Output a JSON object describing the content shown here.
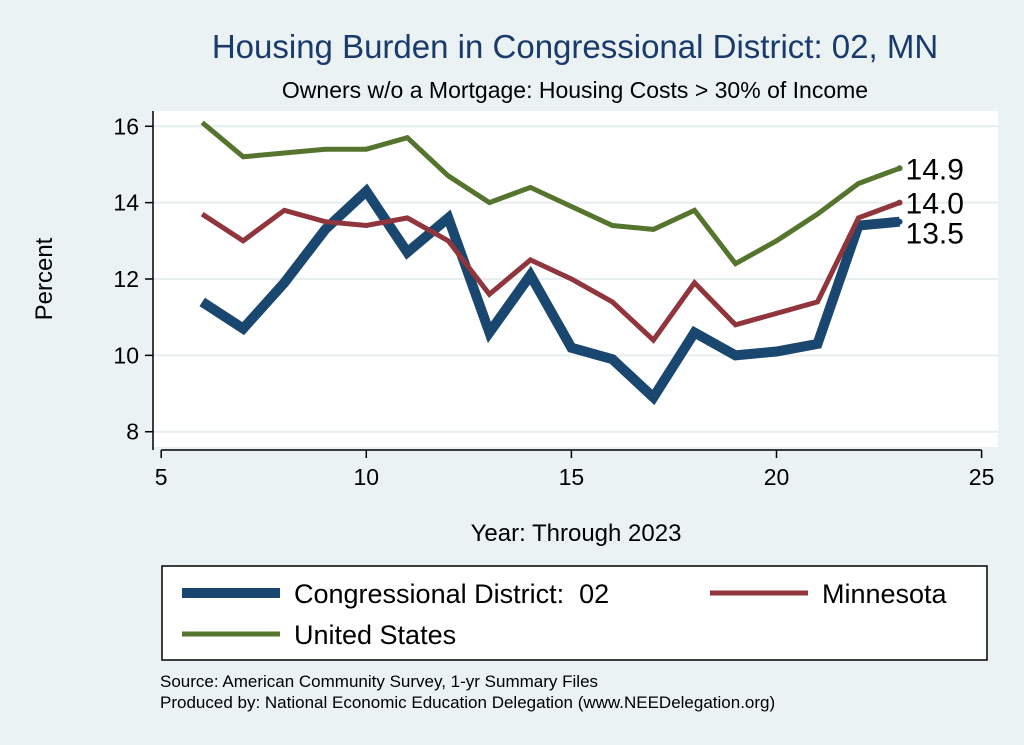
{
  "title": "Housing Burden in Congressional District:  02, MN",
  "subtitle": "Owners w/o a Mortgage: Housing Costs > 30% of Income",
  "source_lines": [
    "Source: American Community Survey, 1-yr Summary Files",
    "Produced by: National Economic Education Delegation (www.NEEDelegation.org)"
  ],
  "colors": {
    "background": "#eaf2f3",
    "plot_background": "#ffffff",
    "grid": "#e6eef0",
    "title": "#1a3a6b"
  },
  "chart_data": {
    "type": "line",
    "title": "Housing Burden in Congressional District:  02, MN",
    "subtitle": "Owners w/o a Mortgage: Housing Costs > 30% of Income",
    "xlabel": "Year: Through 2023",
    "ylabel": "Percent",
    "xlim": [
      4.8,
      25.4
    ],
    "ylim": [
      7.6,
      16.4
    ],
    "xticks": [
      5,
      10,
      15,
      20,
      25
    ],
    "yticks": [
      8,
      10,
      12,
      14,
      16
    ],
    "grid": true,
    "legend_position": "bottom",
    "series": [
      {
        "name": "Congressional District:  02",
        "color": "#1a476f",
        "weight": "heavy",
        "x": [
          6,
          7,
          8,
          9,
          10,
          11,
          12,
          13,
          14,
          15,
          16,
          17,
          18,
          19,
          20,
          21,
          22,
          23
        ],
        "values": [
          11.4,
          10.7,
          11.9,
          13.3,
          14.3,
          12.7,
          13.6,
          10.6,
          12.1,
          10.2,
          9.9,
          8.9,
          10.6,
          10.0,
          10.1,
          10.3,
          13.4,
          13.5
        ],
        "end_label": "13.5"
      },
      {
        "name": "Minnesota",
        "color": "#90353b",
        "weight": "medium",
        "x": [
          6,
          7,
          8,
          9,
          10,
          11,
          12,
          13,
          14,
          15,
          16,
          17,
          18,
          19,
          20,
          21,
          22,
          23
        ],
        "values": [
          13.7,
          13.0,
          13.8,
          13.5,
          13.4,
          13.6,
          13.0,
          11.6,
          12.5,
          12.0,
          11.4,
          10.4,
          11.9,
          10.8,
          11.1,
          11.4,
          13.6,
          14.0
        ],
        "end_label": "14.0"
      },
      {
        "name": "United States",
        "color": "#55752f",
        "weight": "medium",
        "x": [
          6,
          7,
          8,
          9,
          10,
          11,
          12,
          13,
          14,
          15,
          16,
          17,
          18,
          19,
          20,
          21,
          22,
          23
        ],
        "values": [
          16.1,
          15.2,
          15.3,
          15.4,
          15.4,
          15.7,
          14.7,
          14.0,
          14.4,
          13.9,
          13.4,
          13.3,
          13.8,
          12.4,
          13.0,
          13.7,
          14.5,
          14.9
        ],
        "end_label": "14.9"
      }
    ]
  }
}
